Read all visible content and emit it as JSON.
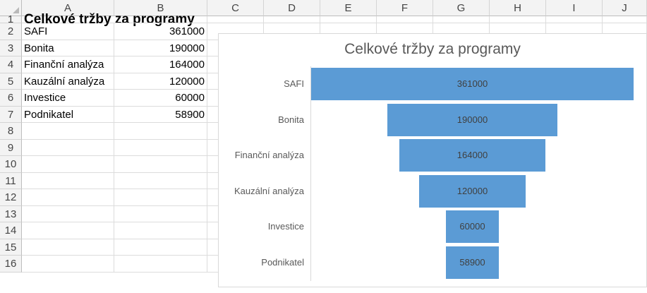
{
  "columns": [
    "A",
    "B",
    "C",
    "D",
    "E",
    "F",
    "G",
    "H",
    "I",
    "J"
  ],
  "rows": [
    "1",
    "2",
    "3",
    "4",
    "5",
    "6",
    "7",
    "8",
    "9",
    "10",
    "11",
    "12",
    "13",
    "14",
    "15",
    "16"
  ],
  "sheet": {
    "title": "Celkové tržby za programy",
    "data": [
      {
        "name": "SAFI",
        "value": "361000"
      },
      {
        "name": "Bonita",
        "value": "190000"
      },
      {
        "name": "Finanční analýza",
        "value": "164000"
      },
      {
        "name": "Kauzální analýza",
        "value": "120000"
      },
      {
        "name": "Investice",
        "value": "60000"
      },
      {
        "name": "Podnikatel",
        "value": "58900"
      }
    ]
  },
  "colors": {
    "bar": "#5b9bd5",
    "header_bg": "#f3f3f3",
    "grid": "#dcdcdc"
  },
  "chart_data": {
    "type": "bar",
    "subtype": "funnel",
    "title": "Celkové tržby za programy",
    "categories": [
      "SAFI",
      "Bonita",
      "Finanční analýza",
      "Kauzální analýza",
      "Investice",
      "Podnikatel"
    ],
    "values": [
      361000,
      190000,
      164000,
      120000,
      60000,
      58900
    ],
    "data_labels": [
      "361000",
      "190000",
      "164000",
      "120000",
      "60000",
      "58900"
    ],
    "xlim": [
      0,
      361000
    ],
    "grid": false,
    "legend": "none"
  }
}
